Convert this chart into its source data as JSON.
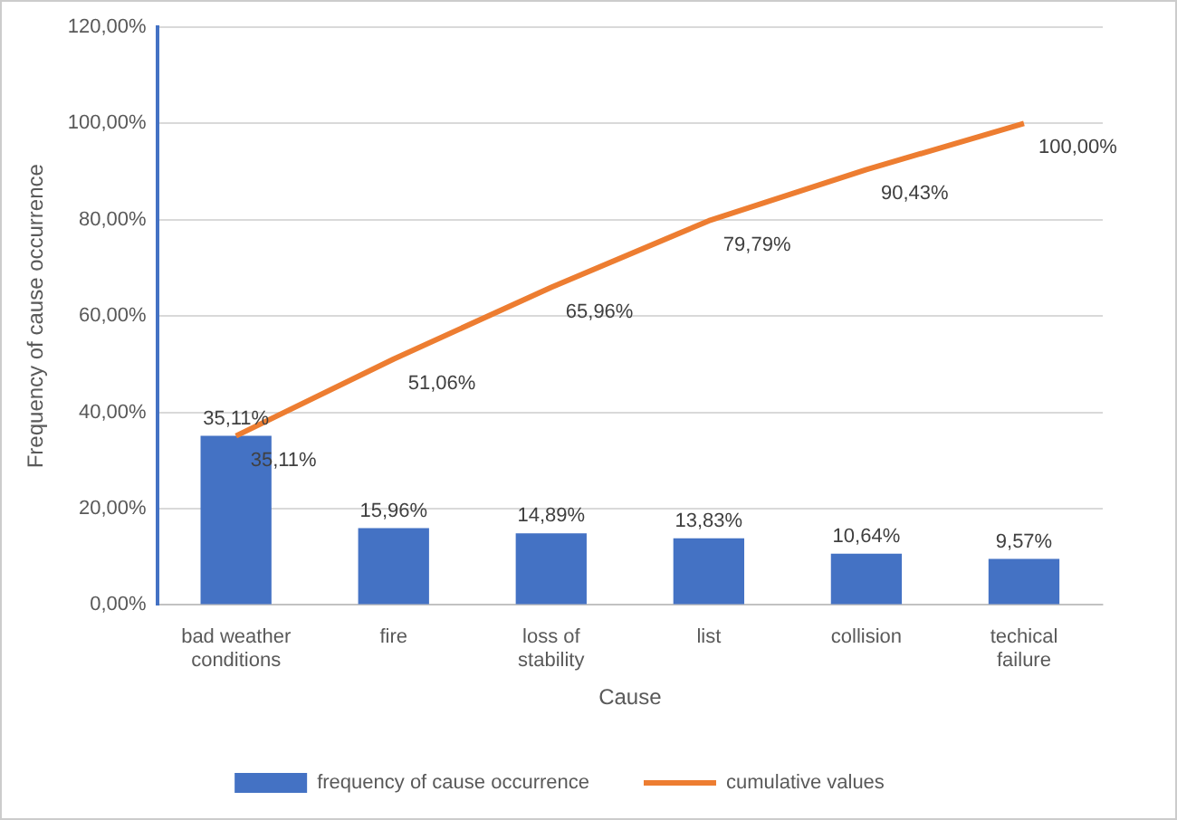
{
  "chart_data": {
    "type": "bar",
    "xlabel": "Cause",
    "ylabel": "Frequency of cause occurrence",
    "categories": [
      "bad weather conditions",
      "fire",
      "loss of stability",
      "list",
      "collision",
      "techical failure"
    ],
    "ylim": [
      0,
      120
    ],
    "yticks": [
      {
        "value": 0,
        "label": "0,00%"
      },
      {
        "value": 20,
        "label": "20,00%"
      },
      {
        "value": 40,
        "label": "40,00%"
      },
      {
        "value": 60,
        "label": "60,00%"
      },
      {
        "value": 80,
        "label": "80,00%"
      },
      {
        "value": 100,
        "label": "100,00%"
      },
      {
        "value": 120,
        "label": "120,00%"
      }
    ],
    "grid": "y",
    "legend": "bottom",
    "marker": "none",
    "line_style": "solid",
    "series": [
      {
        "name": "frequency of cause occurrence",
        "color": "#4472c4",
        "values": [
          35.11,
          15.96,
          14.89,
          13.83,
          10.64,
          9.57
        ],
        "value_labels": [
          "35,11%",
          "15,96%",
          "14,89%",
          "13,83%",
          "10,64%",
          "9,57%"
        ]
      },
      {
        "name": "cumulative values",
        "type": "line",
        "color": "#ed7d31",
        "values": [
          35.11,
          51.06,
          65.96,
          79.79,
          90.43,
          100
        ],
        "value_labels": [
          "35,11%",
          "51,06%",
          "65,96%",
          "79,79%",
          "90,43%",
          "100,00%"
        ]
      }
    ]
  }
}
